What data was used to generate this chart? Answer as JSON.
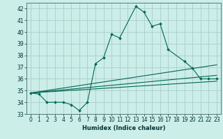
{
  "title": "",
  "xlabel": "Humidex (Indice chaleur)",
  "bg_color": "#cceee8",
  "grid_color": "#aacccc",
  "line_color": "#006655",
  "xlim": [
    -0.5,
    23.5
  ],
  "ylim": [
    33,
    42.5
  ],
  "yticks": [
    33,
    34,
    35,
    36,
    37,
    38,
    39,
    40,
    41,
    42
  ],
  "xticks": [
    0,
    1,
    2,
    3,
    4,
    5,
    6,
    7,
    8,
    9,
    10,
    11,
    12,
    13,
    14,
    15,
    16,
    17,
    18,
    19,
    20,
    21,
    22,
    23
  ],
  "main_series": {
    "x": [
      0,
      1,
      2,
      3,
      4,
      5,
      6,
      7,
      8,
      9,
      10,
      11,
      13,
      14,
      15,
      16,
      17,
      19,
      20,
      21,
      22,
      23
    ],
    "y": [
      34.8,
      34.7,
      34.0,
      34.0,
      34.0,
      33.8,
      33.3,
      34.0,
      37.3,
      37.8,
      39.8,
      39.5,
      42.2,
      41.7,
      40.5,
      40.7,
      38.5,
      37.5,
      36.9,
      36.0,
      36.0,
      36.0
    ]
  },
  "trend_lines": [
    {
      "x": [
        0,
        23
      ],
      "y": [
        34.8,
        35.8
      ]
    },
    {
      "x": [
        0,
        23
      ],
      "y": [
        34.8,
        36.3
      ]
    },
    {
      "x": [
        0,
        23
      ],
      "y": [
        34.8,
        37.2
      ]
    }
  ]
}
